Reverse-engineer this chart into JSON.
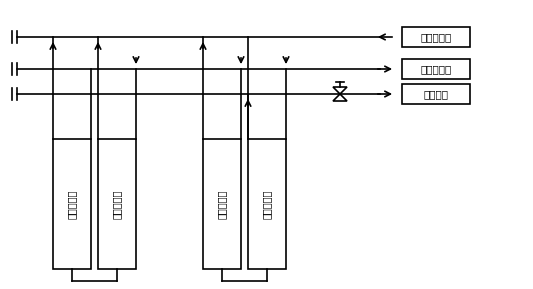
{
  "bg_color": "#ffffff",
  "line_color": "#000000",
  "box_color": "#ffffff",
  "box_edge": "#000000",
  "labels_right": [
    "循环液进料",
    "循环液出料",
    "清液出料"
  ],
  "module_labels": [
    "第二膜组件",
    "第一膜组件",
    "第二膜组件",
    "第一膜组件"
  ],
  "figsize": [
    5.33,
    2.89
  ],
  "dpi": 100
}
